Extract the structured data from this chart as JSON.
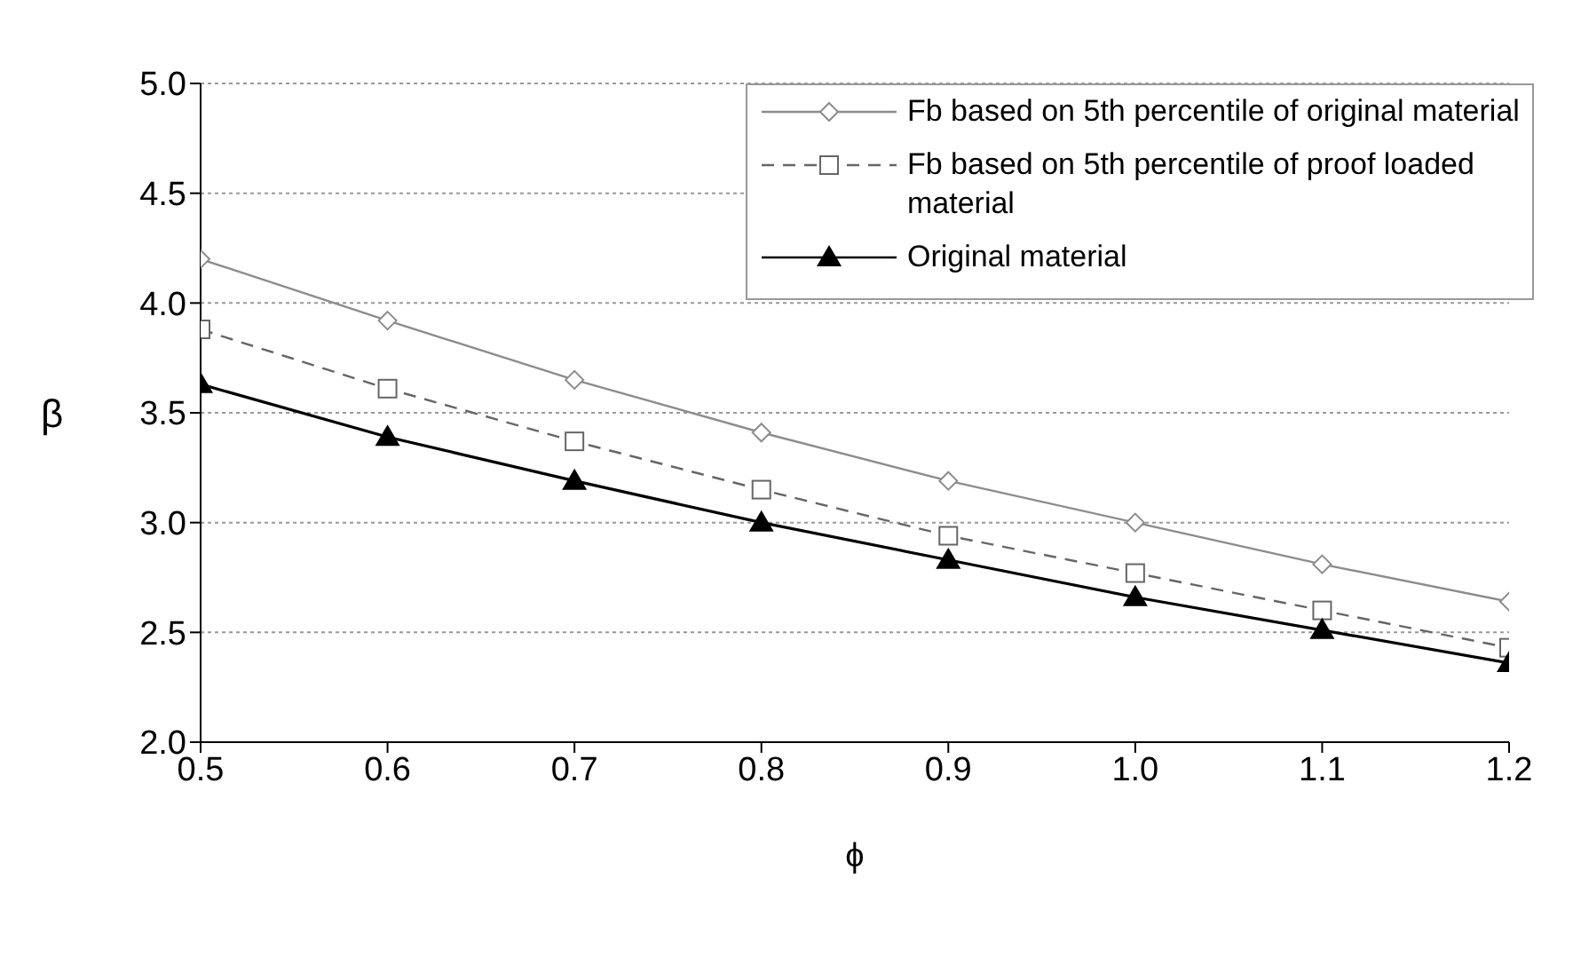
{
  "chart_data": {
    "type": "line",
    "xlabel": "ϕ",
    "ylabel": "β",
    "x": [
      0.5,
      0.6,
      0.7,
      0.8,
      0.9,
      1.0,
      1.1,
      1.2
    ],
    "series": [
      {
        "name": "Fb based on 5th percentile of original material",
        "color": "#8c8c8c",
        "marker": "diamond",
        "line_style": "solid",
        "values": [
          4.2,
          3.92,
          3.65,
          3.41,
          3.19,
          3.0,
          2.81,
          2.64
        ]
      },
      {
        "name": "Fb based on 5th percentile of proof loaded material",
        "color": "#666666",
        "marker": "square",
        "line_style": "dashed",
        "values": [
          3.88,
          3.61,
          3.37,
          3.15,
          2.94,
          2.77,
          2.6,
          2.43
        ]
      },
      {
        "name": "Original material",
        "color": "#000000",
        "marker": "triangle",
        "line_style": "solid",
        "values": [
          3.63,
          3.39,
          3.19,
          3.0,
          2.83,
          2.66,
          2.51,
          2.36
        ]
      }
    ],
    "xlim": [
      0.5,
      1.2
    ],
    "xticks": [
      {
        "value": 0.5,
        "label": "0.5"
      },
      {
        "value": 0.6,
        "label": "0.6"
      },
      {
        "value": 0.7,
        "label": "0.7"
      },
      {
        "value": 0.8,
        "label": "0.8"
      },
      {
        "value": 0.9,
        "label": "0.9"
      },
      {
        "value": 1.0,
        "label": "1.0"
      },
      {
        "value": 1.1,
        "label": "1.1"
      },
      {
        "value": 1.2,
        "label": "1.2"
      }
    ],
    "ylim": [
      2.0,
      5.0
    ],
    "yticks": [
      {
        "value": 2.0,
        "label": "2.0"
      },
      {
        "value": 2.5,
        "label": "2.5"
      },
      {
        "value": 3.0,
        "label": "3.0"
      },
      {
        "value": 3.5,
        "label": "3.5"
      },
      {
        "value": 4.0,
        "label": "4.0"
      },
      {
        "value": 4.5,
        "label": "4.5"
      },
      {
        "value": 5.0,
        "label": "5.0"
      }
    ],
    "grid": "y",
    "legend": "top right"
  }
}
